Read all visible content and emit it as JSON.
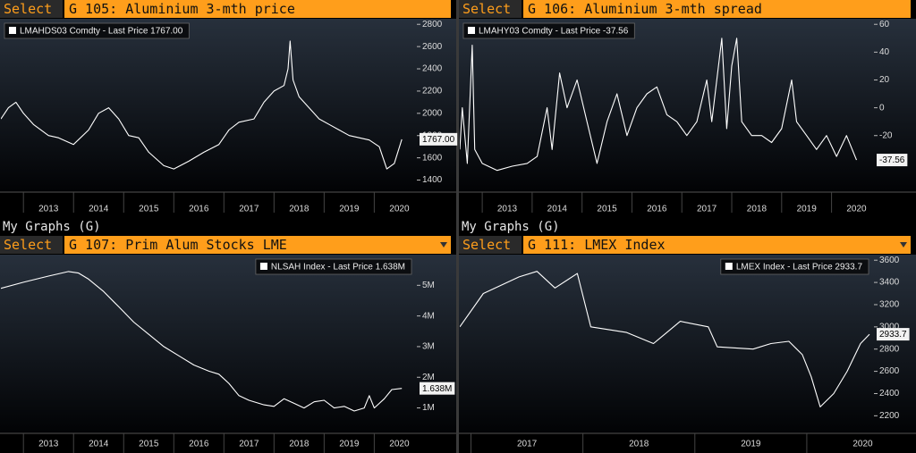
{
  "chart_data": [
    {
      "type": "line",
      "menu": "Select",
      "title": "G 105: Aluminium 3-mth price",
      "legend": "upper left",
      "grid": false,
      "x": [
        2012.55,
        2012.7,
        2012.85,
        2013.0,
        2013.2,
        2013.5,
        2013.7,
        2014.0,
        2014.3,
        2014.5,
        2014.7,
        2014.9,
        2015.1,
        2015.3,
        2015.5,
        2015.8,
        2016.0,
        2016.3,
        2016.6,
        2016.9,
        2017.1,
        2017.3,
        2017.6,
        2017.8,
        2018.0,
        2018.2,
        2018.28,
        2018.32,
        2018.38,
        2018.5,
        2018.7,
        2018.9,
        2019.1,
        2019.3,
        2019.5,
        2019.7,
        2019.9,
        2020.1,
        2020.25,
        2020.4,
        2020.55
      ],
      "series": [
        {
          "name": "LMAHDS03 Comdty - Last Price 1767.00",
          "color": "#ffffff",
          "values": [
            1950,
            2050,
            2100,
            2000,
            1900,
            1800,
            1780,
            1720,
            1850,
            2000,
            2050,
            1950,
            1800,
            1780,
            1650,
            1530,
            1500,
            1570,
            1650,
            1720,
            1850,
            1920,
            1950,
            2100,
            2200,
            2250,
            2400,
            2650,
            2300,
            2150,
            2050,
            1950,
            1900,
            1850,
            1800,
            1780,
            1760,
            1700,
            1500,
            1550,
            1767
          ],
          "value_labels": [
            null,
            null,
            null,
            null,
            null,
            null,
            null,
            null,
            null,
            null,
            null,
            null,
            null,
            null,
            null,
            null,
            null,
            null,
            null,
            null,
            null,
            null,
            null,
            null,
            null,
            null,
            null,
            null,
            null,
            null,
            null,
            null,
            null,
            null,
            null,
            null,
            null,
            null,
            null,
            null,
            "1767.00"
          ]
        }
      ],
      "xlim": [
        2012.55,
        2020.85
      ],
      "xticks": [
        2013,
        2014,
        2015,
        2016,
        2017,
        2018,
        2019,
        2020
      ],
      "ylim": [
        1300,
        2850
      ],
      "yticks": [
        1400,
        1600,
        1800,
        2000,
        2200,
        2400,
        2600,
        2800
      ]
    },
    {
      "type": "line",
      "menu": "Select",
      "title": "G 106: Aluminium 3-mth spread",
      "legend": "upper left",
      "grid": false,
      "x": [
        2012.55,
        2012.6,
        2012.7,
        2012.8,
        2012.85,
        2013.0,
        2013.3,
        2013.6,
        2013.9,
        2014.1,
        2014.3,
        2014.4,
        2014.55,
        2014.7,
        2014.9,
        2015.1,
        2015.3,
        2015.5,
        2015.7,
        2015.9,
        2016.1,
        2016.3,
        2016.5,
        2016.7,
        2016.9,
        2017.1,
        2017.3,
        2017.5,
        2017.6,
        2017.8,
        2017.9,
        2018.0,
        2018.1,
        2018.2,
        2018.4,
        2018.6,
        2018.8,
        2019.0,
        2019.2,
        2019.3,
        2019.5,
        2019.7,
        2019.9,
        2020.1,
        2020.3,
        2020.5
      ],
      "series": [
        {
          "name": "LMAHY03 Comdty - Last Price -37.56",
          "color": "#ffffff",
          "values": [
            -30,
            0,
            -40,
            45,
            -30,
            -40,
            -45,
            -42,
            -40,
            -35,
            0,
            -30,
            25,
            0,
            20,
            -10,
            -40,
            -10,
            10,
            -20,
            0,
            10,
            15,
            -5,
            -10,
            -20,
            -10,
            20,
            -10,
            50,
            -15,
            30,
            50,
            -10,
            -20,
            -20,
            -25,
            -15,
            20,
            -10,
            -20,
            -30,
            -20,
            -35,
            -20,
            -37.56
          ],
          "value_labels": [
            null,
            null,
            null,
            null,
            null,
            null,
            null,
            null,
            null,
            null,
            null,
            null,
            null,
            null,
            null,
            null,
            null,
            null,
            null,
            null,
            null,
            null,
            null,
            null,
            null,
            null,
            null,
            null,
            null,
            null,
            null,
            null,
            null,
            null,
            null,
            null,
            null,
            null,
            null,
            null,
            null,
            null,
            null,
            null,
            null,
            "-37.56"
          ]
        }
      ],
      "xlim": [
        2012.55,
        2020.85
      ],
      "xticks": [
        2013,
        2014,
        2015,
        2016,
        2017,
        2018,
        2019,
        2020
      ],
      "ylim": [
        -60,
        64
      ],
      "yticks": [
        -20,
        0,
        20,
        40,
        60
      ]
    },
    {
      "type": "line",
      "section": "My Graphs (G)",
      "menu": "Select",
      "title": "G 107: Prim Alum Stocks LME",
      "legend": "upper right",
      "grid": false,
      "x": [
        2012.55,
        2013.0,
        2013.5,
        2013.9,
        2014.1,
        2014.3,
        2014.6,
        2014.9,
        2015.2,
        2015.5,
        2015.8,
        2016.1,
        2016.4,
        2016.7,
        2016.9,
        2017.1,
        2017.3,
        2017.5,
        2017.8,
        2018.0,
        2018.2,
        2018.4,
        2018.6,
        2018.8,
        2019.0,
        2019.2,
        2019.4,
        2019.6,
        2019.8,
        2019.9,
        2020.0,
        2020.2,
        2020.35,
        2020.55
      ],
      "series": [
        {
          "name": "NLSAH Index - Last Price 1.638M",
          "color": "#ffffff",
          "values": [
            4900000,
            5100000,
            5300000,
            5450000,
            5400000,
            5200000,
            4800000,
            4300000,
            3800000,
            3400000,
            3000000,
            2700000,
            2400000,
            2200000,
            2100000,
            1800000,
            1400000,
            1250000,
            1100000,
            1050000,
            1300000,
            1150000,
            1000000,
            1200000,
            1250000,
            1000000,
            1050000,
            900000,
            1000000,
            1400000,
            1000000,
            1300000,
            1600000,
            1638000
          ],
          "value_labels": [
            null,
            null,
            null,
            null,
            null,
            null,
            null,
            null,
            null,
            null,
            null,
            null,
            null,
            null,
            null,
            null,
            null,
            null,
            null,
            null,
            null,
            null,
            null,
            null,
            null,
            null,
            null,
            null,
            null,
            null,
            null,
            null,
            null,
            "1.638M"
          ]
        }
      ],
      "xlim": [
        2012.55,
        2020.85
      ],
      "xticks": [
        2013,
        2014,
        2015,
        2016,
        2017,
        2018,
        2019,
        2020
      ],
      "ylim": [
        200000,
        6000000
      ],
      "yticks": [
        {
          "value": 1000000,
          "label": "1M"
        },
        {
          "value": 2000000,
          "label": "2M"
        },
        {
          "value": 3000000,
          "label": "3M"
        },
        {
          "value": 4000000,
          "label": "4M"
        },
        {
          "value": 5000000,
          "label": "5M"
        }
      ]
    },
    {
      "type": "line",
      "section": "My Graphs (G)",
      "menu": "Select",
      "title": "G 111: LMEX Index",
      "legend": "upper right",
      "grid": false,
      "x": [
        2016.9,
        2017.11,
        2017.43,
        2017.59,
        2017.75,
        2017.95,
        2018.07,
        2018.39,
        2018.63,
        2018.75,
        2018.87,
        2019.12,
        2019.2,
        2019.52,
        2019.68,
        2019.84,
        2019.96,
        2020.04,
        2020.12,
        2020.24,
        2020.36,
        2020.48,
        2020.56
      ],
      "series": [
        {
          "name": "LMEX Index - Last Price 2933.7",
          "color": "#ffffff",
          "values": [
            3000,
            3300,
            3450,
            3500,
            3350,
            3480,
            3000,
            2950,
            2850,
            2950,
            3050,
            3000,
            2820,
            2800,
            2850,
            2870,
            2750,
            2550,
            2280,
            2400,
            2600,
            2850,
            2933.7
          ],
          "value_labels": [
            null,
            null,
            null,
            null,
            null,
            null,
            null,
            null,
            null,
            null,
            null,
            null,
            null,
            null,
            null,
            null,
            null,
            null,
            null,
            null,
            null,
            null,
            "2933.7"
          ]
        }
      ],
      "xlim": [
        2016.9,
        2020.6
      ],
      "xticks": [
        2017,
        2018,
        2019,
        2020
      ],
      "ylim": [
        2050,
        3650
      ],
      "yticks": [
        2200,
        2400,
        2600,
        2800,
        3000,
        3200,
        3400,
        3600
      ]
    }
  ]
}
